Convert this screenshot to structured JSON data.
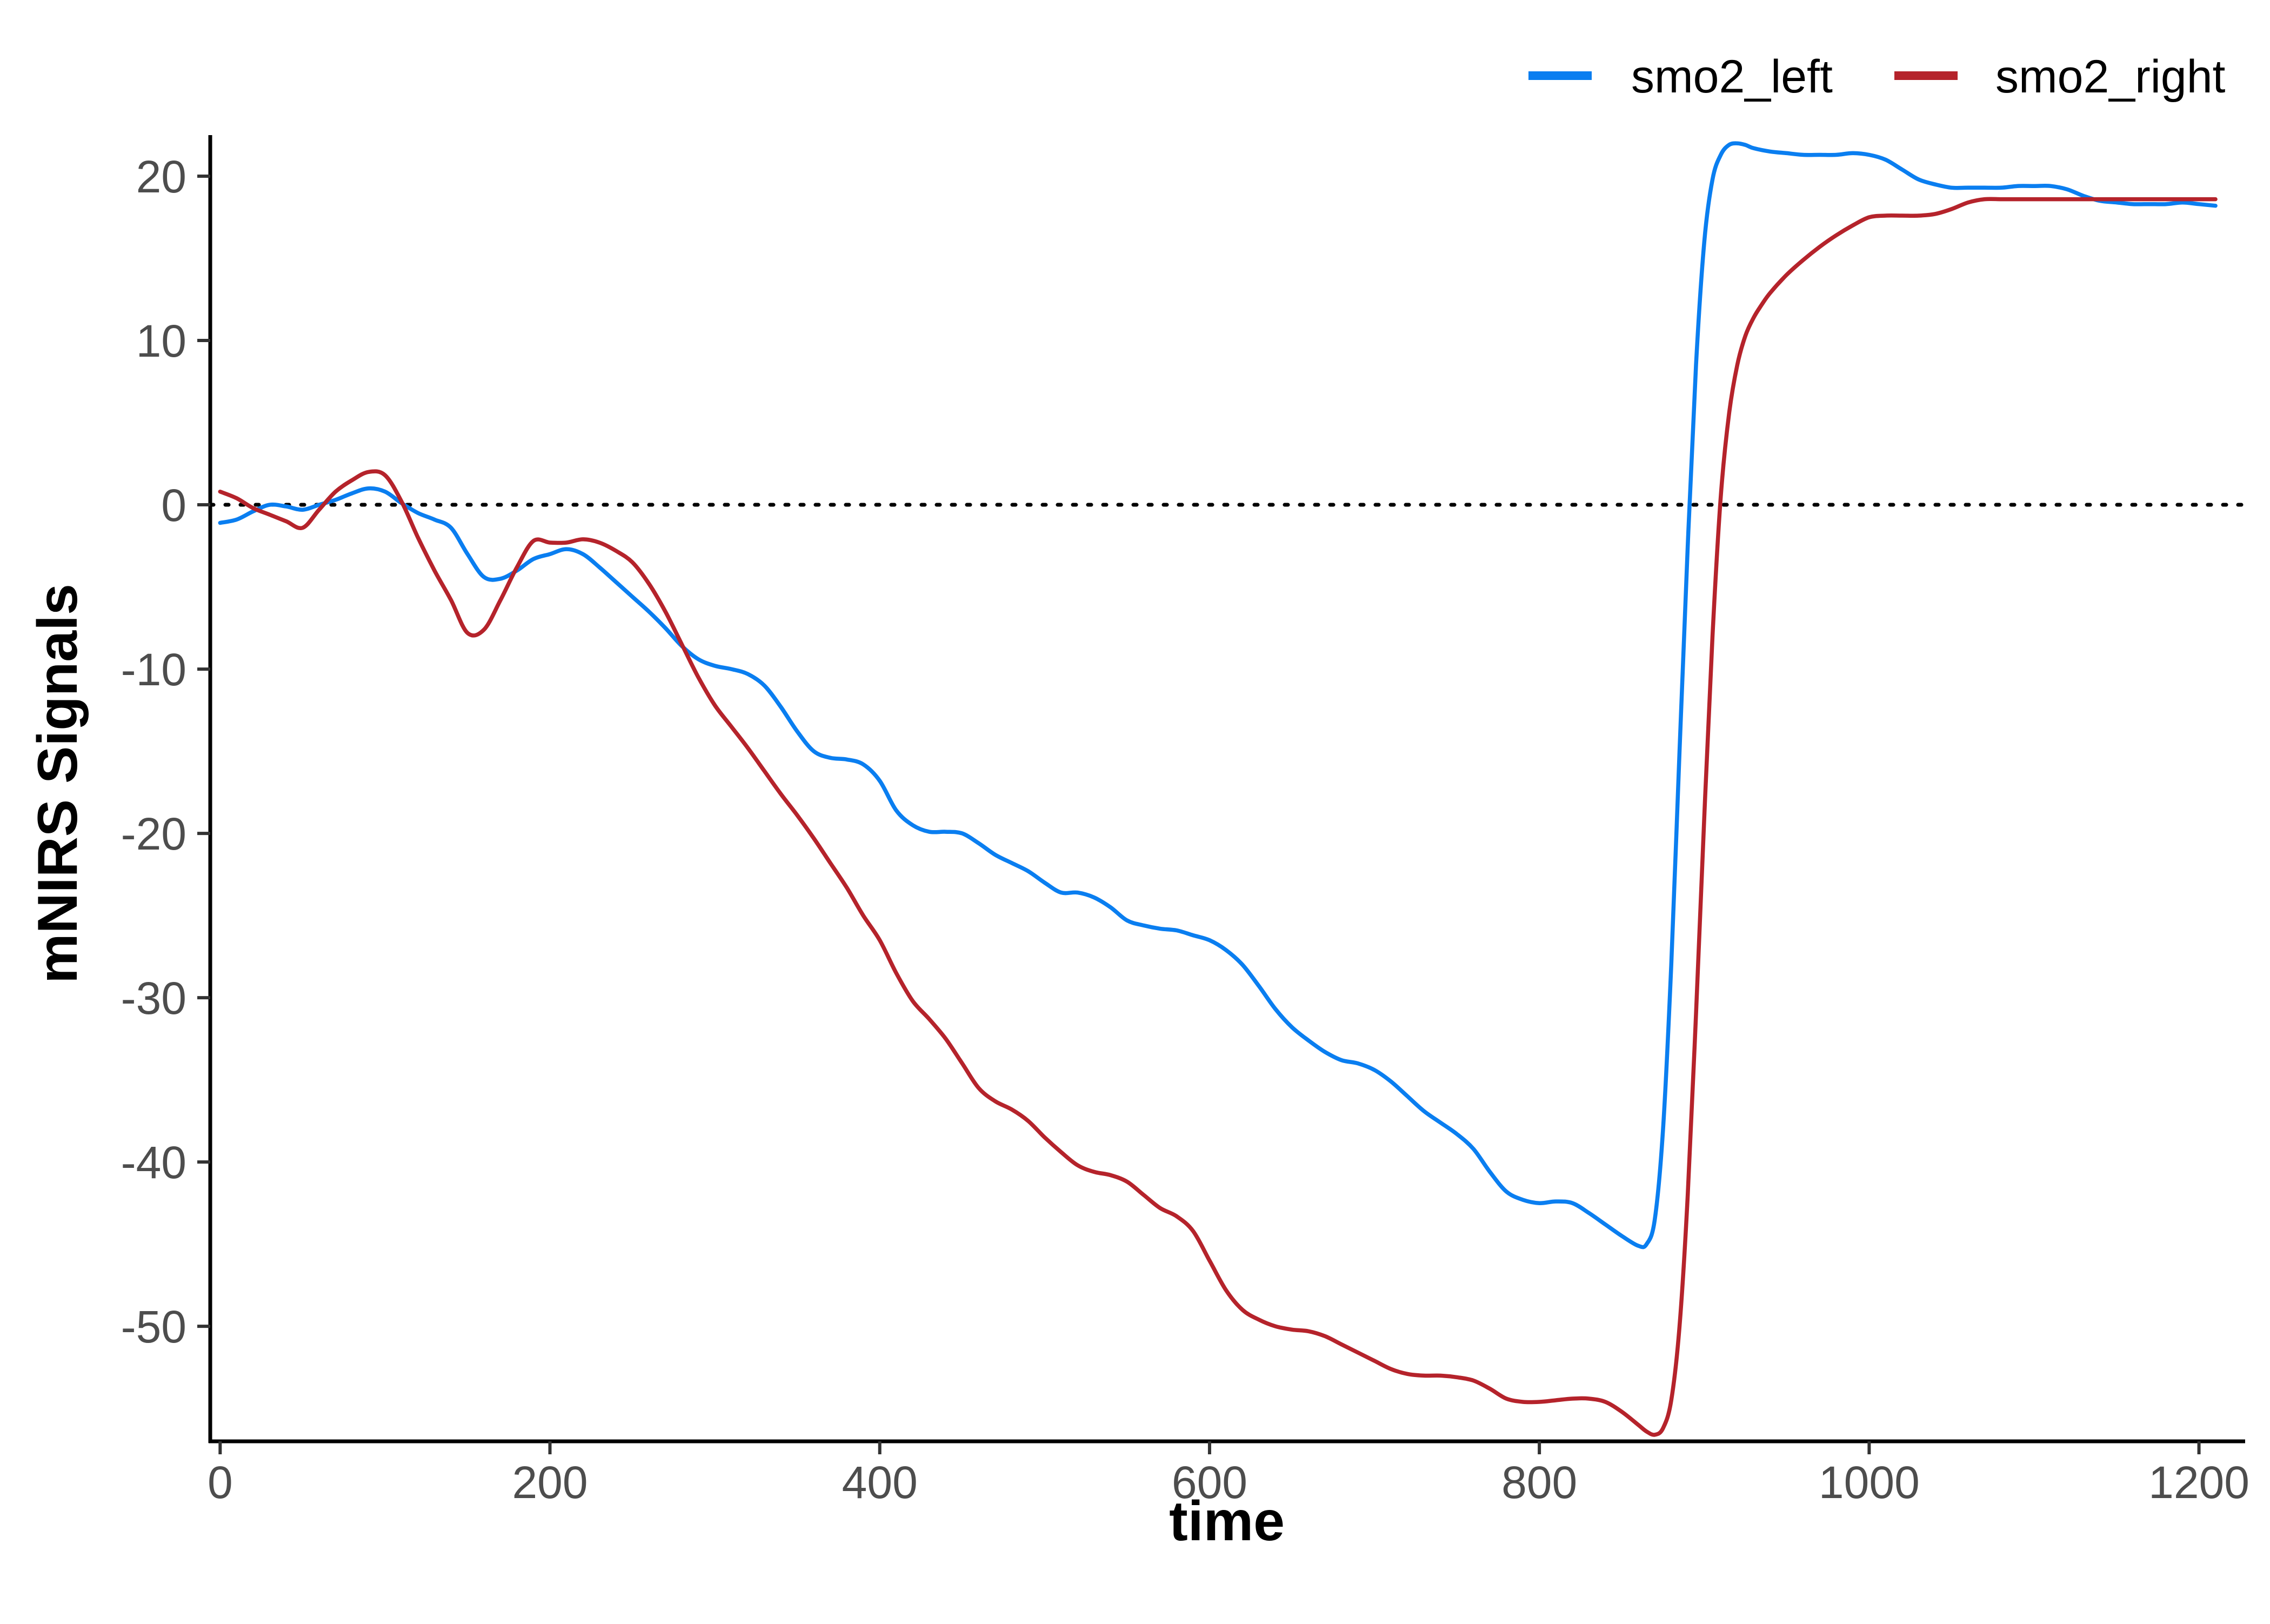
{
  "chart_data": {
    "type": "line",
    "title": "",
    "xlabel": "time",
    "ylabel": "mNIRS Signals",
    "xlim": [
      -6,
      1228
    ],
    "ylim": [
      -57,
      22.5
    ],
    "x_ticks": [
      0,
      200,
      400,
      600,
      800,
      1000,
      1200
    ],
    "x_tick_labels": [
      "0",
      "200",
      "400",
      "600",
      "800",
      "1000",
      "1200"
    ],
    "y_ticks": [
      20,
      10,
      0,
      -10,
      -20,
      -30,
      -40,
      -50
    ],
    "y_tick_labels": [
      "20",
      "10",
      "0",
      "-10",
      "-20",
      "-30",
      "-40",
      "-50"
    ],
    "reference_line": {
      "y": 0,
      "style": "dotted",
      "color": "#000000"
    },
    "grid": false,
    "legend": {
      "position": "top-right"
    },
    "series": [
      {
        "name": "smo2_left",
        "color": "#0a7ef0",
        "x": [
          0,
          10,
          20,
          30,
          40,
          50,
          60,
          70,
          80,
          90,
          100,
          110,
          120,
          130,
          140,
          150,
          160,
          170,
          180,
          190,
          200,
          210,
          220,
          230,
          240,
          250,
          260,
          270,
          280,
          290,
          300,
          310,
          320,
          330,
          340,
          350,
          360,
          370,
          380,
          390,
          400,
          410,
          420,
          430,
          440,
          450,
          460,
          470,
          480,
          490,
          500,
          510,
          520,
          530,
          540,
          550,
          560,
          570,
          580,
          590,
          600,
          610,
          620,
          630,
          640,
          650,
          660,
          670,
          680,
          690,
          700,
          710,
          720,
          730,
          740,
          750,
          760,
          770,
          780,
          790,
          800,
          810,
          820,
          830,
          840,
          850,
          860,
          865,
          870,
          875,
          880,
          885,
          890,
          895,
          900,
          905,
          910,
          915,
          920,
          925,
          930,
          940,
          950,
          960,
          970,
          980,
          990,
          1000,
          1010,
          1020,
          1030,
          1040,
          1050,
          1060,
          1070,
          1080,
          1090,
          1100,
          1110,
          1120,
          1130,
          1140,
          1150,
          1160,
          1170,
          1180,
          1190,
          1200,
          1210
        ],
        "y": [
          -1.1,
          -0.9,
          -0.4,
          0.0,
          -0.1,
          -0.3,
          0.0,
          0.3,
          0.7,
          1.0,
          0.8,
          0.1,
          -0.5,
          -0.9,
          -1.4,
          -3.0,
          -4.4,
          -4.5,
          -4.0,
          -3.3,
          -3.0,
          -2.7,
          -3.0,
          -3.8,
          -4.7,
          -5.6,
          -6.5,
          -7.5,
          -8.6,
          -9.4,
          -9.8,
          -10.0,
          -10.3,
          -11.0,
          -12.3,
          -13.8,
          -15.0,
          -15.4,
          -15.5,
          -15.8,
          -16.8,
          -18.6,
          -19.5,
          -19.9,
          -19.9,
          -20.0,
          -20.6,
          -21.3,
          -21.8,
          -22.3,
          -23.0,
          -23.6,
          -23.6,
          -23.9,
          -24.5,
          -25.3,
          -25.6,
          -25.8,
          -25.9,
          -26.2,
          -26.5,
          -27.1,
          -28.0,
          -29.3,
          -30.7,
          -31.8,
          -32.6,
          -33.3,
          -33.8,
          -34.0,
          -34.4,
          -35.1,
          -36.0,
          -36.9,
          -37.6,
          -38.3,
          -39.2,
          -40.6,
          -41.8,
          -42.3,
          -42.5,
          -42.4,
          -42.5,
          -43.1,
          -43.8,
          -44.5,
          -45.1,
          -45.0,
          -43.5,
          -38.0,
          -28.0,
          -15.0,
          -2.5,
          8.5,
          16.0,
          19.8,
          21.3,
          21.9,
          22.0,
          21.9,
          21.7,
          21.5,
          21.4,
          21.3,
          21.3,
          21.3,
          21.4,
          21.3,
          21.0,
          20.4,
          19.8,
          19.5,
          19.3,
          19.3,
          19.3,
          19.3,
          19.4,
          19.4,
          19.4,
          19.2,
          18.8,
          18.5,
          18.4,
          18.3,
          18.3,
          18.3,
          18.4,
          18.3,
          18.2
        ]
      },
      {
        "name": "smo2_right",
        "color": "#b5232b",
        "x": [
          0,
          10,
          20,
          30,
          40,
          50,
          60,
          70,
          80,
          90,
          100,
          110,
          120,
          130,
          140,
          150,
          160,
          170,
          180,
          190,
          200,
          210,
          220,
          230,
          240,
          250,
          260,
          270,
          280,
          290,
          300,
          310,
          320,
          330,
          340,
          350,
          360,
          370,
          380,
          390,
          400,
          410,
          420,
          430,
          440,
          450,
          460,
          470,
          480,
          490,
          500,
          510,
          520,
          530,
          540,
          550,
          560,
          570,
          580,
          590,
          600,
          610,
          620,
          630,
          640,
          650,
          660,
          670,
          680,
          690,
          700,
          710,
          720,
          730,
          740,
          750,
          760,
          770,
          780,
          790,
          800,
          810,
          820,
          830,
          840,
          850,
          860,
          865,
          870,
          875,
          880,
          885,
          890,
          895,
          900,
          905,
          910,
          915,
          920,
          925,
          930,
          935,
          940,
          950,
          960,
          970,
          980,
          990,
          1000,
          1010,
          1020,
          1030,
          1040,
          1050,
          1060,
          1070,
          1080,
          1090,
          1100,
          1110,
          1120,
          1130,
          1140,
          1150,
          1160,
          1170,
          1180,
          1190,
          1200,
          1210
        ],
        "y": [
          0.8,
          0.4,
          -0.2,
          -0.6,
          -1.0,
          -1.4,
          -0.3,
          0.8,
          1.5,
          2.0,
          1.8,
          0.2,
          -2.0,
          -4.0,
          -5.8,
          -7.8,
          -7.6,
          -5.8,
          -3.8,
          -2.2,
          -2.3,
          -2.3,
          -2.1,
          -2.3,
          -2.8,
          -3.5,
          -4.8,
          -6.5,
          -8.5,
          -10.5,
          -12.2,
          -13.5,
          -14.8,
          -16.2,
          -17.6,
          -18.9,
          -20.3,
          -21.8,
          -23.3,
          -25.0,
          -26.5,
          -28.5,
          -30.2,
          -31.3,
          -32.5,
          -34.0,
          -35.5,
          -36.3,
          -36.8,
          -37.5,
          -38.5,
          -39.4,
          -40.2,
          -40.6,
          -40.8,
          -41.2,
          -42.0,
          -42.8,
          -43.3,
          -44.2,
          -46.0,
          -47.8,
          -49.0,
          -49.6,
          -50.0,
          -50.2,
          -50.3,
          -50.6,
          -51.1,
          -51.6,
          -52.1,
          -52.6,
          -52.9,
          -53.0,
          -53.0,
          -53.1,
          -53.3,
          -53.8,
          -54.4,
          -54.6,
          -54.6,
          -54.5,
          -54.4,
          -54.4,
          -54.6,
          -55.2,
          -56.0,
          -56.4,
          -56.6,
          -56.2,
          -54.5,
          -50.0,
          -42.0,
          -31.0,
          -19.0,
          -8.0,
          0.5,
          5.5,
          8.5,
          10.3,
          11.4,
          12.2,
          12.9,
          14.0,
          14.9,
          15.7,
          16.4,
          17.0,
          17.5,
          17.6,
          17.6,
          17.6,
          17.7,
          18.0,
          18.4,
          18.6,
          18.6,
          18.6,
          18.6,
          18.6,
          18.6,
          18.6,
          18.6,
          18.6,
          18.6,
          18.6,
          18.6,
          18.6,
          18.6,
          18.6
        ]
      }
    ]
  }
}
